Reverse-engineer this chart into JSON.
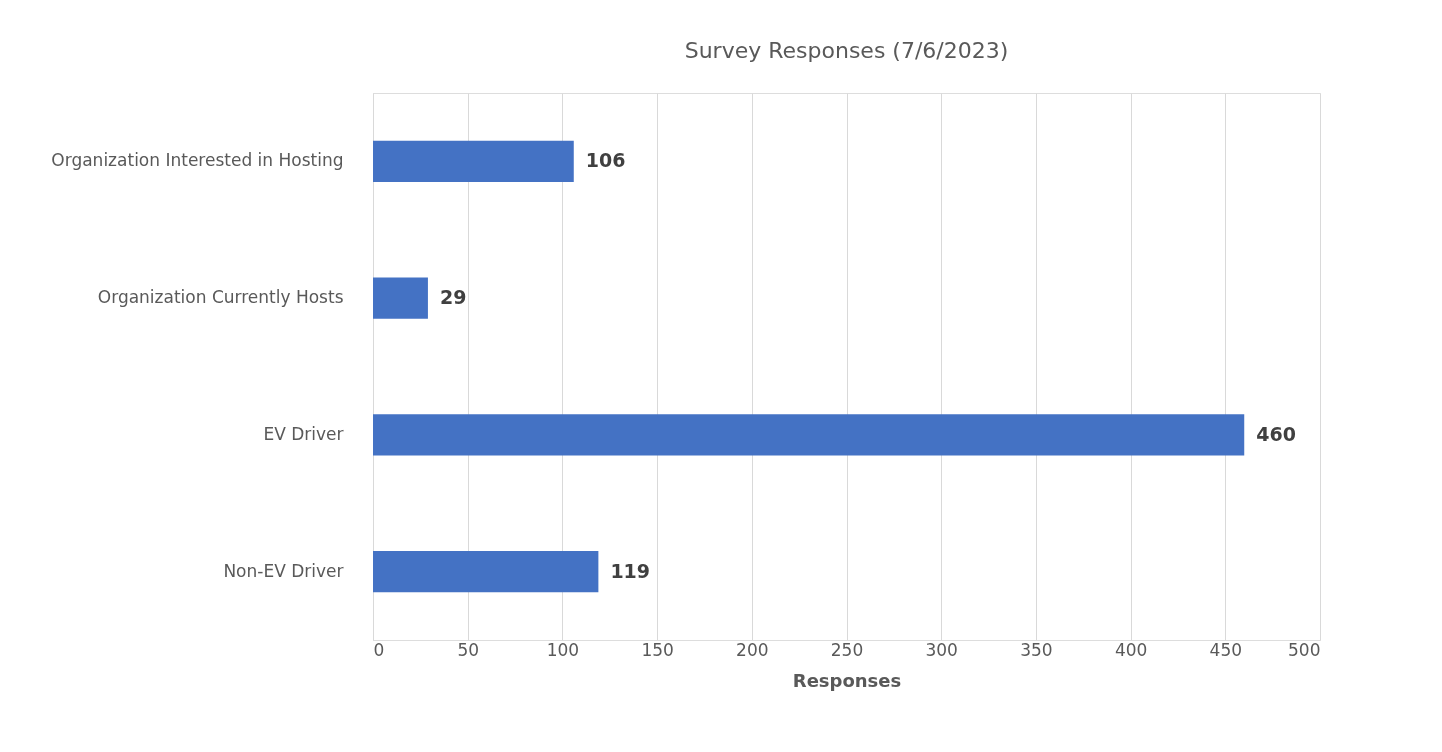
{
  "chart_data": {
    "type": "bar",
    "orientation": "horizontal",
    "title": "Survey Responses (7/6/2023)",
    "xlabel": "Responses",
    "categories": [
      "Organization Interested in Hosting",
      "Organization Currently Hosts",
      "EV Driver",
      "Non-EV Driver"
    ],
    "values": [
      106,
      29,
      460,
      119
    ],
    "color": "#4472c4",
    "xlim": [
      0,
      500
    ],
    "xticks": [
      0,
      50,
      100,
      150,
      200,
      250,
      300,
      350,
      400,
      450,
      500
    ],
    "grid": "x",
    "data_labels": true
  }
}
